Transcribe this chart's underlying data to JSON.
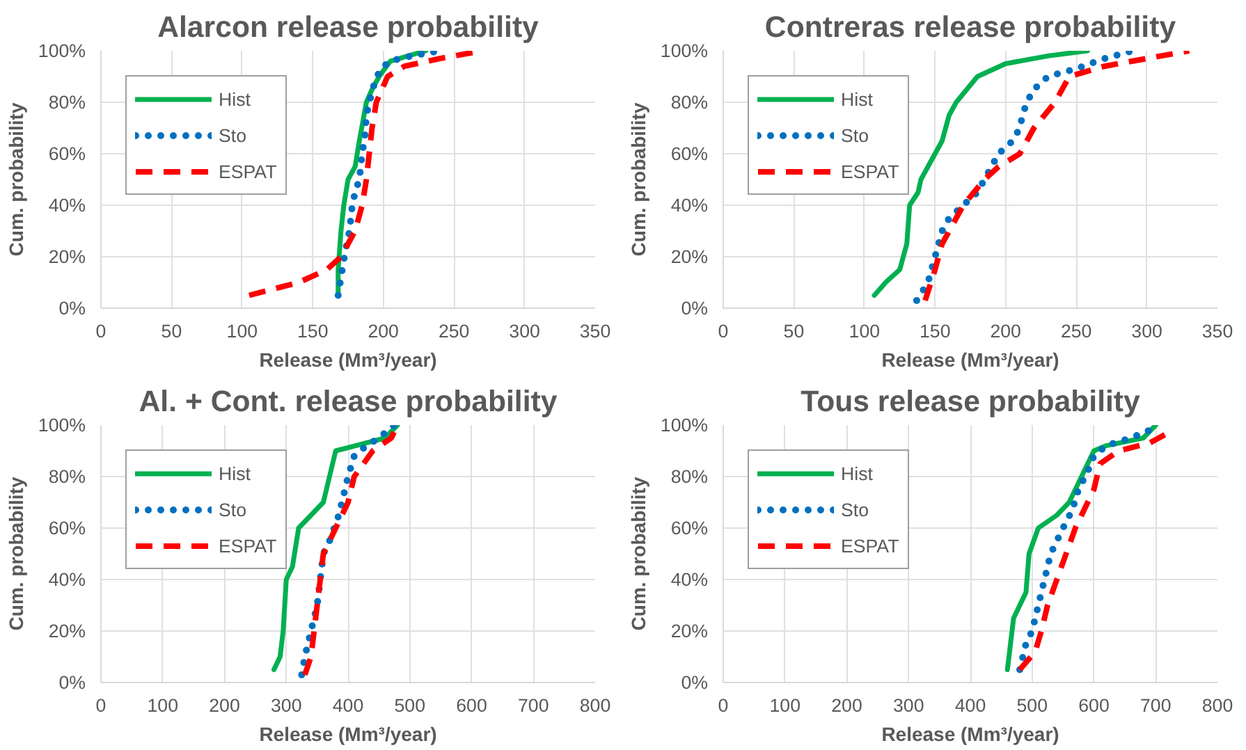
{
  "chart_data": [
    {
      "type": "line",
      "title": "Alarcon release probability",
      "xlabel": "Release (Mm³/year)",
      "ylabel": "Cum. probability",
      "xlim": [
        0,
        350
      ],
      "xticks": [
        0,
        50,
        100,
        150,
        200,
        250,
        300,
        350
      ],
      "ylim": [
        0,
        100
      ],
      "yticks": [
        {
          "value": 0,
          "label": "0%"
        },
        {
          "value": 20,
          "label": "20%"
        },
        {
          "value": 40,
          "label": "40%"
        },
        {
          "value": 60,
          "label": "60%"
        },
        {
          "value": 80,
          "label": "80%"
        },
        {
          "value": 100,
          "label": "100%"
        }
      ],
      "grid": true,
      "legend": "top left",
      "marker": "none",
      "series": [
        {
          "name": "Hist",
          "color": "#00b050",
          "line_style": "solid",
          "x": [
            168,
            168,
            170,
            172,
            175,
            180,
            183,
            188,
            192,
            197,
            205,
            230
          ],
          "values": [
            5,
            15,
            30,
            40,
            50,
            55,
            65,
            80,
            85,
            90,
            96,
            100
          ]
        },
        {
          "name": "Sto",
          "color": "#0070c0",
          "line_style": "dotted",
          "x": [
            168,
            170,
            173,
            176,
            178,
            180,
            183,
            185,
            187,
            188,
            191,
            194,
            198,
            205,
            220,
            240
          ],
          "values": [
            5,
            12,
            22,
            30,
            40,
            45,
            50,
            60,
            67,
            75,
            82,
            88,
            93,
            96,
            98,
            100
          ]
        },
        {
          "name": "ESPAT",
          "color": "#ff0000",
          "line_style": "dashed",
          "x": [
            105,
            140,
            160,
            170,
            180,
            185,
            188,
            190,
            192,
            195,
            203,
            215,
            240,
            270
          ],
          "values": [
            5,
            10,
            15,
            20,
            30,
            40,
            50,
            60,
            70,
            80,
            90,
            94,
            97,
            100
          ]
        }
      ]
    },
    {
      "type": "line",
      "title": "Contreras release probability",
      "xlabel": "Release (Mm³/year)",
      "ylabel": "Cum. probability",
      "xlim": [
        0,
        350
      ],
      "xticks": [
        0,
        50,
        100,
        150,
        200,
        250,
        300,
        350
      ],
      "ylim": [
        0,
        100
      ],
      "yticks": [
        {
          "value": 0,
          "label": "0%"
        },
        {
          "value": 20,
          "label": "20%"
        },
        {
          "value": 40,
          "label": "40%"
        },
        {
          "value": 60,
          "label": "60%"
        },
        {
          "value": 80,
          "label": "80%"
        },
        {
          "value": 100,
          "label": "100%"
        }
      ],
      "grid": true,
      "legend": "top left",
      "marker": "none",
      "series": [
        {
          "name": "Hist",
          "color": "#00b050",
          "line_style": "solid",
          "x": [
            107,
            115,
            125,
            130,
            132,
            138,
            140,
            145,
            150,
            155,
            160,
            165,
            180,
            200,
            230,
            258
          ],
          "values": [
            5,
            10,
            15,
            25,
            40,
            45,
            50,
            55,
            60,
            65,
            75,
            80,
            90,
            95,
            98,
            100
          ]
        },
        {
          "name": "Sto",
          "color": "#0070c0",
          "line_style": "dotted",
          "x": [
            137,
            145,
            150,
            155,
            160,
            170,
            180,
            185,
            190,
            195,
            205,
            210,
            212,
            215,
            220,
            230,
            250,
            270,
            290
          ],
          "values": [
            3,
            10,
            20,
            30,
            35,
            40,
            45,
            50,
            55,
            60,
            65,
            70,
            75,
            80,
            85,
            90,
            93,
            97,
            100
          ]
        },
        {
          "name": "ESPAT",
          "color": "#ff0000",
          "line_style": "dashed",
          "x": [
            143,
            150,
            155,
            160,
            170,
            185,
            195,
            210,
            220,
            235,
            245,
            270,
            300,
            330
          ],
          "values": [
            3,
            15,
            25,
            30,
            40,
            50,
            55,
            60,
            70,
            80,
            90,
            94,
            97,
            100
          ]
        }
      ]
    },
    {
      "type": "line",
      "title": "Al. + Cont. release probability",
      "xlabel": "Release (Mm³/year)",
      "ylabel": "Cum. probability",
      "xlim": [
        0,
        800
      ],
      "xticks": [
        0,
        100,
        200,
        300,
        400,
        500,
        600,
        700,
        800
      ],
      "ylim": [
        0,
        100
      ],
      "yticks": [
        {
          "value": 0,
          "label": "0%"
        },
        {
          "value": 20,
          "label": "20%"
        },
        {
          "value": 40,
          "label": "40%"
        },
        {
          "value": 60,
          "label": "60%"
        },
        {
          "value": 80,
          "label": "80%"
        },
        {
          "value": 100,
          "label": "100%"
        }
      ],
      "grid": true,
      "legend": "top left",
      "marker": "none",
      "series": [
        {
          "name": "Hist",
          "color": "#00b050",
          "line_style": "solid",
          "x": [
            280,
            290,
            295,
            300,
            310,
            320,
            340,
            360,
            370,
            380,
            460,
            480
          ],
          "values": [
            5,
            10,
            20,
            40,
            45,
            60,
            65,
            70,
            80,
            90,
            95,
            100
          ]
        },
        {
          "name": "Sto",
          "color": "#0070c0",
          "line_style": "dotted",
          "x": [
            325,
            330,
            340,
            350,
            355,
            360,
            370,
            385,
            395,
            400,
            410,
            430,
            450,
            475
          ],
          "values": [
            3,
            10,
            20,
            30,
            40,
            50,
            55,
            65,
            75,
            80,
            88,
            92,
            95,
            100
          ]
        },
        {
          "name": "ESPAT",
          "color": "#ff0000",
          "line_style": "dashed",
          "x": [
            330,
            340,
            345,
            350,
            355,
            360,
            380,
            390,
            400,
            410,
            440,
            470,
            480
          ],
          "values": [
            3,
            10,
            20,
            30,
            40,
            50,
            60,
            65,
            70,
            80,
            90,
            95,
            100
          ]
        }
      ]
    },
    {
      "type": "line",
      "title": "Tous release probability",
      "xlabel": "Release (Mm³/year)",
      "ylabel": "Cum. probability",
      "xlim": [
        0,
        800
      ],
      "xticks": [
        0,
        100,
        200,
        300,
        400,
        500,
        600,
        700,
        800
      ],
      "ylim": [
        0,
        100
      ],
      "yticks": [
        {
          "value": 0,
          "label": "0%"
        },
        {
          "value": 20,
          "label": "20%"
        },
        {
          "value": 40,
          "label": "40%"
        },
        {
          "value": 60,
          "label": "60%"
        },
        {
          "value": 80,
          "label": "80%"
        },
        {
          "value": 100,
          "label": "100%"
        }
      ],
      "grid": true,
      "legend": "top left",
      "marker": "none",
      "series": [
        {
          "name": "Hist",
          "color": "#00b050",
          "line_style": "solid",
          "x": [
            460,
            465,
            470,
            480,
            490,
            495,
            510,
            540,
            560,
            570,
            580,
            590,
            600,
            620,
            680,
            700
          ],
          "values": [
            5,
            15,
            25,
            30,
            35,
            50,
            60,
            65,
            70,
            75,
            80,
            85,
            90,
            92,
            95,
            100
          ]
        },
        {
          "name": "Sto",
          "color": "#0070c0",
          "line_style": "dotted",
          "x": [
            480,
            485,
            490,
            500,
            510,
            520,
            530,
            540,
            550,
            565,
            575,
            590,
            600,
            620,
            660,
            690
          ],
          "values": [
            5,
            10,
            15,
            20,
            30,
            40,
            50,
            55,
            60,
            67,
            75,
            82,
            88,
            92,
            95,
            98
          ]
        },
        {
          "name": "ESPAT",
          "color": "#ff0000",
          "line_style": "dashed",
          "x": [
            480,
            505,
            515,
            525,
            540,
            555,
            570,
            580,
            590,
            600,
            610,
            640,
            690,
            720
          ],
          "values": [
            5,
            12,
            20,
            30,
            40,
            50,
            60,
            65,
            70,
            75,
            85,
            90,
            93,
            97
          ]
        }
      ]
    }
  ]
}
